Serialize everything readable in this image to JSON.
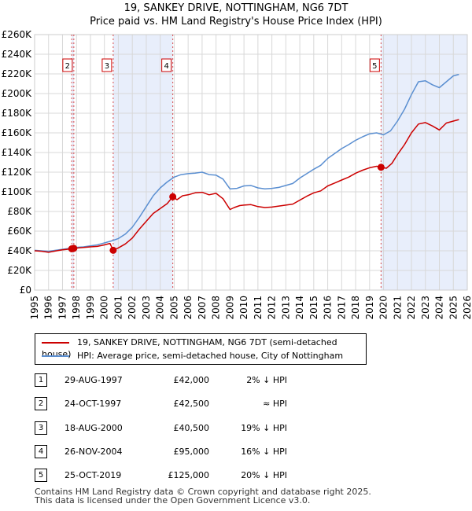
{
  "chart_data": {
    "type": "line",
    "title": "19, SANKEY DRIVE, NOTTINGHAM, NG6 7DT",
    "subtitle": "Price paid vs. HM Land Registry's House Price Index (HPI)",
    "xlabel": "",
    "ylabel": "",
    "xlim": [
      1995,
      2026
    ],
    "ylim": [
      0,
      260000
    ],
    "y_ticks": [
      {
        "value": 0,
        "label": "£0"
      },
      {
        "value": 20000,
        "label": "£20K"
      },
      {
        "value": 40000,
        "label": "£40K"
      },
      {
        "value": 60000,
        "label": "£60K"
      },
      {
        "value": 80000,
        "label": "£80K"
      },
      {
        "value": 100000,
        "label": "£100K"
      },
      {
        "value": 120000,
        "label": "£120K"
      },
      {
        "value": 140000,
        "label": "£140K"
      },
      {
        "value": 160000,
        "label": "£160K"
      },
      {
        "value": 180000,
        "label": "£180K"
      },
      {
        "value": 200000,
        "label": "£200K"
      },
      {
        "value": 220000,
        "label": "£220K"
      },
      {
        "value": 240000,
        "label": "£240K"
      },
      {
        "value": 260000,
        "label": "£260K"
      }
    ],
    "x_ticks": [
      "1995",
      "1996",
      "1997",
      "1998",
      "1999",
      "2000",
      "2001",
      "2002",
      "2003",
      "2004",
      "2005",
      "2006",
      "2007",
      "2008",
      "2009",
      "2010",
      "2011",
      "2012",
      "2013",
      "2014",
      "2015",
      "2016",
      "2017",
      "2018",
      "2019",
      "2020",
      "2021",
      "2022",
      "2023",
      "2024",
      "2025",
      "2026"
    ],
    "grid": true,
    "legend_position": "below",
    "series": [
      {
        "name": "19, SANKEY DRIVE, NOTTINGHAM, NG6 7DT (semi-detached house)",
        "color": "#cc0000",
        "x": [
          1995.0,
          1995.5,
          1996.0,
          1996.5,
          1997.0,
          1997.66,
          1997.81,
          1998.2,
          1998.6,
          1999.0,
          1999.5,
          2000.0,
          2000.4,
          2000.63,
          2001.0,
          2001.5,
          2002.0,
          2002.5,
          2003.0,
          2003.5,
          2004.0,
          2004.5,
          2004.9,
          2005.2,
          2005.6,
          2006.0,
          2006.5,
          2007.0,
          2007.5,
          2008.0,
          2008.5,
          2009.0,
          2009.3,
          2009.7,
          2010.0,
          2010.5,
          2011.0,
          2011.5,
          2012.0,
          2012.5,
          2013.0,
          2013.5,
          2014.0,
          2014.5,
          2015.0,
          2015.5,
          2016.0,
          2016.5,
          2017.0,
          2017.5,
          2018.0,
          2018.5,
          2019.0,
          2019.5,
          2019.82,
          2020.2,
          2020.6,
          2021.0,
          2021.5,
          2022.0,
          2022.5,
          2023.0,
          2023.5,
          2024.0,
          2024.5,
          2025.0,
          2025.4
        ],
        "y": [
          40000,
          39500,
          38500,
          39800,
          41000,
          42000,
          42500,
          43000,
          43500,
          44000,
          44500,
          46000,
          47500,
          40500,
          43000,
          47000,
          53000,
          62000,
          70000,
          78000,
          83000,
          88000,
          95000,
          92000,
          96000,
          97000,
          99000,
          99500,
          97000,
          98500,
          93000,
          82000,
          84000,
          86000,
          86500,
          87000,
          85000,
          84000,
          84500,
          85500,
          86500,
          87500,
          91500,
          95500,
          99000,
          101000,
          106000,
          109000,
          112000,
          115000,
          119000,
          122000,
          124500,
          126000,
          125000,
          124000,
          129000,
          138000,
          148000,
          160000,
          169000,
          170500,
          167000,
          163000,
          170000,
          172000,
          173500
        ]
      },
      {
        "name": "HPI: Average price, semi-detached house, City of Nottingham",
        "color": "#5b8fd1",
        "x": [
          1995.0,
          1995.5,
          1996.0,
          1996.5,
          1997.0,
          1997.5,
          1998.0,
          1998.5,
          1999.0,
          1999.5,
          2000.0,
          2000.5,
          2001.0,
          2001.5,
          2002.0,
          2002.5,
          2003.0,
          2003.5,
          2004.0,
          2004.5,
          2005.0,
          2005.5,
          2006.0,
          2006.5,
          2007.0,
          2007.5,
          2008.0,
          2008.5,
          2009.0,
          2009.5,
          2010.0,
          2010.5,
          2011.0,
          2011.5,
          2012.0,
          2012.5,
          2013.0,
          2013.5,
          2014.0,
          2014.5,
          2015.0,
          2015.5,
          2016.0,
          2016.5,
          2017.0,
          2017.5,
          2018.0,
          2018.5,
          2019.0,
          2019.5,
          2020.0,
          2020.5,
          2021.0,
          2021.5,
          2022.0,
          2022.5,
          2023.0,
          2023.5,
          2024.0,
          2024.5,
          2025.0,
          2025.4
        ],
        "y": [
          40500,
          40000,
          39500,
          40500,
          41500,
          42500,
          43500,
          44000,
          45000,
          46000,
          48000,
          50000,
          52500,
          57000,
          64000,
          74000,
          85000,
          96000,
          104000,
          110000,
          115000,
          117500,
          118500,
          119000,
          120000,
          117500,
          117000,
          113000,
          103000,
          103500,
          106000,
          106500,
          104000,
          103000,
          103500,
          104500,
          106500,
          108500,
          114000,
          118500,
          123000,
          127000,
          134000,
          139000,
          144000,
          148000,
          152500,
          156000,
          159000,
          160000,
          158000,
          162000,
          172000,
          184000,
          199000,
          212000,
          213000,
          209000,
          206000,
          212000,
          218000,
          219500
        ]
      }
    ],
    "markers": [
      {
        "label": "1",
        "x": 1997.66,
        "y": 42000
      },
      {
        "label": "2",
        "x": 1997.81,
        "y": 42500
      },
      {
        "label": "3",
        "x": 2000.63,
        "y": 40500
      },
      {
        "label": "4",
        "x": 2004.9,
        "y": 95000
      },
      {
        "label": "5",
        "x": 2019.82,
        "y": 125000
      }
    ],
    "boxed_markers": [
      "2",
      "3",
      "4",
      "5"
    ],
    "shaded_spans": [
      [
        1997.66,
        1997.81
      ],
      [
        2000.63,
        2004.9
      ],
      [
        2019.82,
        2026
      ]
    ]
  },
  "legend": {
    "property_label": "19, SANKEY DRIVE, NOTTINGHAM, NG6 7DT (semi-detached house)",
    "hpi_label": "HPI: Average price, semi-detached house, City of Nottingham",
    "property_color": "#cc0000",
    "hpi_color": "#5b8fd1"
  },
  "sales": [
    {
      "num": "1",
      "date": "29-AUG-1997",
      "price": "£42,000",
      "diff": "2% ↓ HPI"
    },
    {
      "num": "2",
      "date": "24-OCT-1997",
      "price": "£42,500",
      "diff": "≈ HPI"
    },
    {
      "num": "3",
      "date": "18-AUG-2000",
      "price": "£40,500",
      "diff": "19% ↓ HPI"
    },
    {
      "num": "4",
      "date": "26-NOV-2004",
      "price": "£95,000",
      "diff": "16% ↓ HPI"
    },
    {
      "num": "5",
      "date": "25-OCT-2019",
      "price": "£125,000",
      "diff": "20% ↓ HPI"
    }
  ],
  "footer": {
    "line1": "Contains HM Land Registry data © Crown copyright and database right 2025.",
    "line2": "This data is licensed under the Open Government Licence v3.0."
  }
}
